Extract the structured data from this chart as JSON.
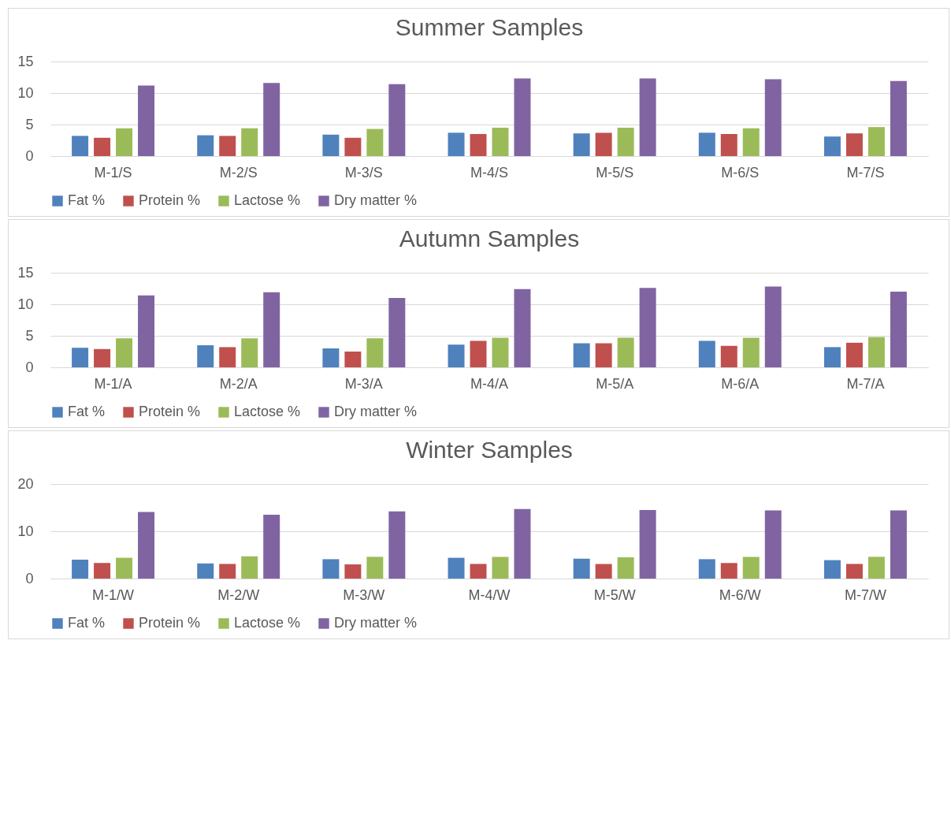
{
  "chart_data": [
    {
      "type": "bar",
      "title": "Summer Samples",
      "categories": [
        "M-1/S",
        "M-2/S",
        "M-3/S",
        "M-4/S",
        "M-5/S",
        "M-6/S",
        "M-7/S"
      ],
      "ylim": [
        0,
        15
      ],
      "yticks": [
        0,
        5,
        10,
        15
      ],
      "grid": "y",
      "legend": "bottom",
      "series": [
        {
          "name": "Fat %",
          "color": "#4f81bd",
          "values": [
            3.2,
            3.3,
            3.4,
            3.7,
            3.6,
            3.7,
            3.1
          ]
        },
        {
          "name": "Protein %",
          "color": "#c0504d",
          "values": [
            2.9,
            3.2,
            2.9,
            3.5,
            3.7,
            3.5,
            3.6
          ]
        },
        {
          "name": "Lactose %",
          "color": "#9bbb59",
          "values": [
            4.4,
            4.4,
            4.3,
            4.5,
            4.5,
            4.4,
            4.6
          ]
        },
        {
          "name": "Dry matter %",
          "color": "#8064a2",
          "values": [
            11.2,
            11.6,
            11.4,
            12.3,
            12.3,
            12.2,
            11.9
          ]
        }
      ]
    },
    {
      "type": "bar",
      "title": "Autumn Samples",
      "categories": [
        "M-1/A",
        "M-2/A",
        "M-3/A",
        "M-4/A",
        "M-5/A",
        "M-6/A",
        "M-7/A"
      ],
      "ylim": [
        0,
        15
      ],
      "yticks": [
        0,
        5,
        10,
        15
      ],
      "grid": "y",
      "legend": "bottom",
      "series": [
        {
          "name": "Fat %",
          "color": "#4f81bd",
          "values": [
            3.1,
            3.5,
            3.0,
            3.6,
            3.8,
            4.2,
            3.2
          ]
        },
        {
          "name": "Protein %",
          "color": "#c0504d",
          "values": [
            2.9,
            3.2,
            2.5,
            4.2,
            3.8,
            3.4,
            3.9
          ]
        },
        {
          "name": "Lactose %",
          "color": "#9bbb59",
          "values": [
            4.6,
            4.6,
            4.6,
            4.7,
            4.7,
            4.7,
            4.8
          ]
        },
        {
          "name": "Dry matter %",
          "color": "#8064a2",
          "values": [
            11.4,
            11.9,
            11.0,
            12.4,
            12.6,
            12.8,
            12.0
          ]
        }
      ]
    },
    {
      "type": "bar",
      "title": "Winter Samples",
      "categories": [
        "M-1/W",
        "M-2/W",
        "M-3/W",
        "M-4/W",
        "M-5/W",
        "M-6/W",
        "M-7/W"
      ],
      "ylim": [
        0,
        20
      ],
      "yticks": [
        0,
        10,
        20
      ],
      "grid": "y",
      "legend": "bottom",
      "series": [
        {
          "name": "Fat %",
          "color": "#4f81bd",
          "values": [
            4.0,
            3.2,
            4.1,
            4.4,
            4.2,
            4.1,
            3.9
          ]
        },
        {
          "name": "Protein %",
          "color": "#c0504d",
          "values": [
            3.3,
            3.1,
            3.0,
            3.1,
            3.1,
            3.3,
            3.1
          ]
        },
        {
          "name": "Lactose %",
          "color": "#9bbb59",
          "values": [
            4.4,
            4.7,
            4.6,
            4.6,
            4.5,
            4.6,
            4.6
          ]
        },
        {
          "name": "Dry matter %",
          "color": "#8064a2",
          "values": [
            14.1,
            13.5,
            14.2,
            14.7,
            14.5,
            14.4,
            14.4
          ]
        }
      ]
    }
  ]
}
